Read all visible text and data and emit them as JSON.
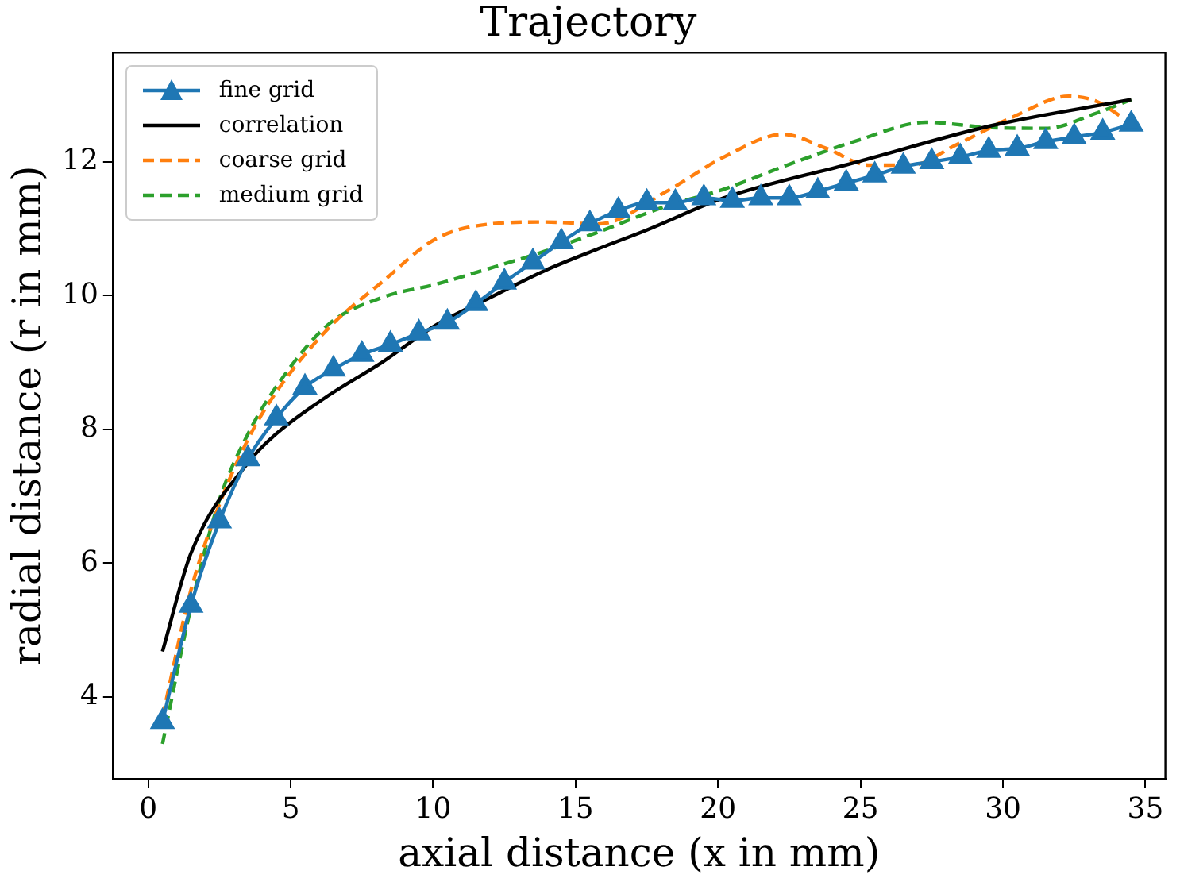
{
  "chart_data": {
    "type": "line",
    "title": "Trajectory",
    "xlabel": "axial distance (x in mm)",
    "ylabel": "radial distance (r in mm)",
    "xlim": [
      -1.25,
      35.7
    ],
    "xticks": [
      0,
      5,
      10,
      15,
      20,
      25,
      30,
      35
    ],
    "ylim": [
      2.78,
      13.63
    ],
    "yticks": [
      4,
      6,
      8,
      10,
      12
    ],
    "grid": false,
    "legend": "top left",
    "series": [
      {
        "name": "fine grid",
        "color": "#1f77b4",
        "marker": "triangle",
        "line_style": "solid",
        "x": [
          0.5,
          1.5,
          2.5,
          3.5,
          4.5,
          5.5,
          6.5,
          7.5,
          8.5,
          9.5,
          10.5,
          11.5,
          12.5,
          13.5,
          14.5,
          15.5,
          16.5,
          17.5,
          18.5,
          19.5,
          20.5,
          21.5,
          22.5,
          23.5,
          24.5,
          25.5,
          26.5,
          27.5,
          28.5,
          29.5,
          30.5,
          31.5,
          32.5,
          33.5,
          34.5
        ],
        "values": [
          3.63,
          5.37,
          6.63,
          7.56,
          8.17,
          8.63,
          8.9,
          9.12,
          9.27,
          9.44,
          9.6,
          9.88,
          10.2,
          10.5,
          10.8,
          11.07,
          11.27,
          11.39,
          11.39,
          11.46,
          11.42,
          11.46,
          11.46,
          11.56,
          11.68,
          11.8,
          11.93,
          12.0,
          12.07,
          12.17,
          12.2,
          12.3,
          12.37,
          12.44,
          12.56
        ]
      },
      {
        "name": "correlation",
        "color": "#000000",
        "marker": "none",
        "line_style": "solid",
        "x": [
          0.5,
          1.5,
          3.5,
          4.4,
          6.3,
          8.2,
          10.1,
          12.0,
          13.9,
          15.8,
          17.5,
          20.2,
          24.9,
          29.6,
          34.5
        ],
        "values": [
          4.68,
          6.15,
          7.5,
          7.9,
          8.5,
          9.0,
          9.56,
          9.97,
          10.37,
          10.7,
          10.98,
          11.46,
          12.0,
          12.54,
          12.93
        ]
      },
      {
        "name": "coarse grid",
        "color": "#ff7f0e",
        "marker": "none",
        "line_style": "dashed",
        "x": [
          0.5,
          1.5,
          2.5,
          3.5,
          4.4,
          6.3,
          8.2,
          10.1,
          12.0,
          13.9,
          15.8,
          18.2,
          20.2,
          22.3,
          23.8,
          25.3,
          26.8,
          28.3,
          30.4,
          32.3,
          33.3,
          34.2
        ],
        "values": [
          3.7,
          5.6,
          6.88,
          7.85,
          8.5,
          9.5,
          10.2,
          10.85,
          11.07,
          11.1,
          11.07,
          11.56,
          12.07,
          12.41,
          12.2,
          11.95,
          11.95,
          12.24,
          12.68,
          12.98,
          12.9,
          12.66
        ]
      },
      {
        "name": "medium grid",
        "color": "#2ca02c",
        "marker": "none",
        "line_style": "dashed",
        "x": [
          0.5,
          1.5,
          2.5,
          3.5,
          4.4,
          6.3,
          8.2,
          10.1,
          12.0,
          13.9,
          15.8,
          18.2,
          20.2,
          22.3,
          24.9,
          27.3,
          29.6,
          31.5,
          33.3,
          34.5
        ],
        "values": [
          3.3,
          5.34,
          6.95,
          7.93,
          8.58,
          9.56,
          9.97,
          10.17,
          10.41,
          10.66,
          10.95,
          11.34,
          11.59,
          11.93,
          12.32,
          12.59,
          12.51,
          12.5,
          12.73,
          12.93
        ]
      }
    ]
  }
}
